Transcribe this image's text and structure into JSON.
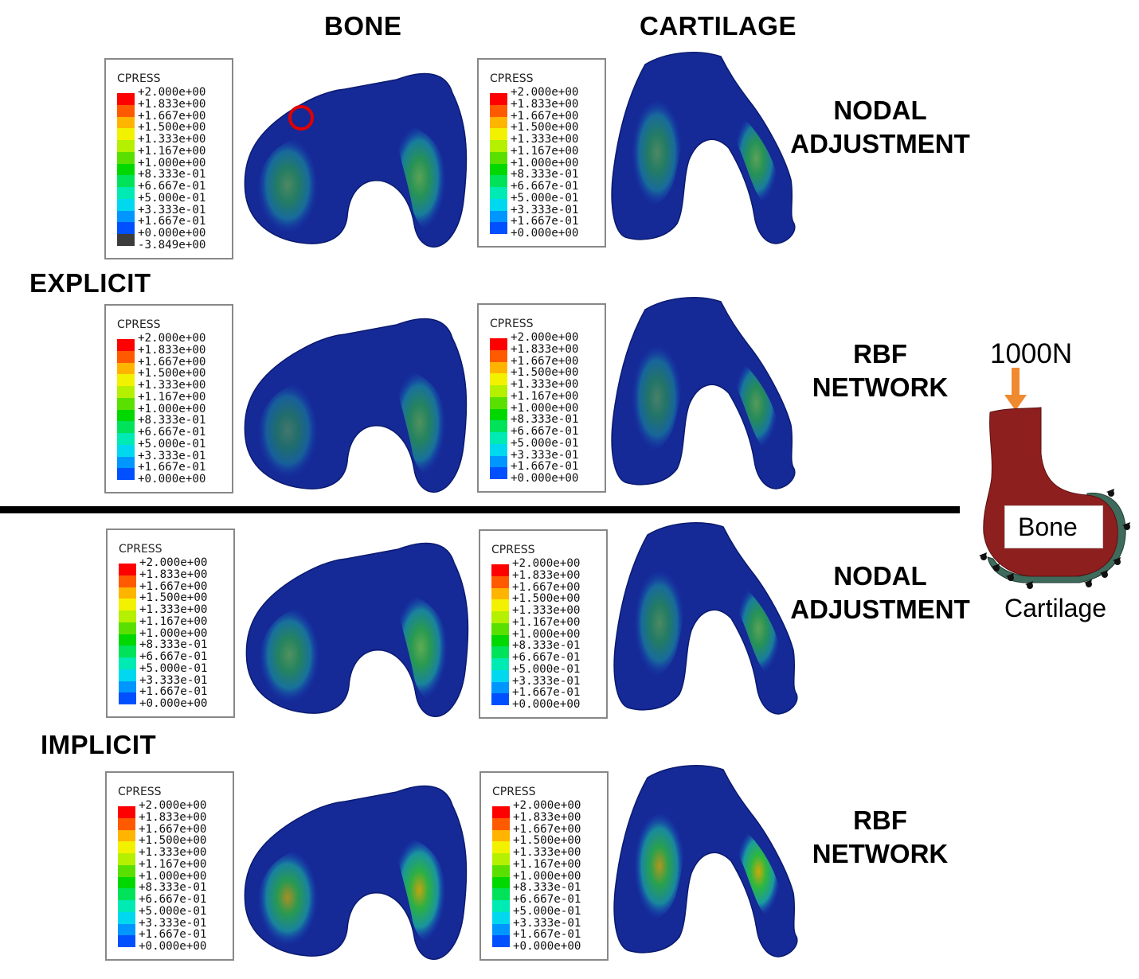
{
  "columns": {
    "bone": "BONE",
    "cartilage": "CARTILAGE"
  },
  "groups": {
    "explicit": "EXPLICIT",
    "implicit": "IMPLICIT"
  },
  "rows": [
    {
      "method": "NODAL\nADJUSTMENT"
    },
    {
      "method": "RBF\nNETWORK"
    },
    {
      "method": "NODAL\nADJUSTMENT"
    },
    {
      "method": "RBF\nNETWORK"
    }
  ],
  "legend": {
    "title": "CPRESS",
    "values": [
      "+2.000e+00",
      "+1.833e+00",
      "+1.667e+00",
      "+1.500e+00",
      "+1.333e+00",
      "+1.167e+00",
      "+1.000e+00",
      "+8.333e-01",
      "+6.667e-01",
      "+5.000e-01",
      "+3.333e-01",
      "+1.667e-01",
      "+0.000e+00"
    ],
    "extra_value": "-3.849e+00",
    "colors": [
      "#ff0000",
      "#ff5a00",
      "#ffb400",
      "#f2f200",
      "#b4f000",
      "#5ae000",
      "#00d800",
      "#00e25a",
      "#00eab4",
      "#00d8f0",
      "#0096ff",
      "#0050ff",
      "#0000ff"
    ],
    "extra_color": "#3c3c3c"
  },
  "schematic": {
    "load": "1000N",
    "bone_label": "Bone",
    "cartilage_label": "Cartilage"
  },
  "colors": {
    "model_base": "#152a96",
    "highlight_circle": "#e00000",
    "load_arrow": "#f08a30",
    "bone_fill": "#8e1f1f",
    "cartilage_fill": "#3e6b5c"
  }
}
